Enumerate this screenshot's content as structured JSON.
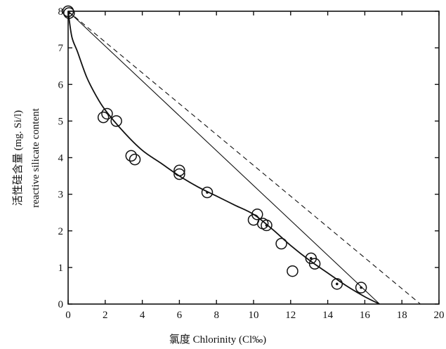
{
  "chart_data": {
    "type": "scatter",
    "xlabel": "氯度 Chlorinity (Cl‰)",
    "ylabel_cn": "活性硅含量 (mg. Si/l)",
    "ylabel_en": "reactive silicate content",
    "xlim": [
      0,
      20
    ],
    "ylim": [
      0,
      8
    ],
    "x_ticks": [
      0,
      2,
      4,
      6,
      8,
      10,
      12,
      14,
      16,
      18,
      20
    ],
    "y_ticks": [
      0,
      1,
      2,
      3,
      4,
      5,
      6,
      7,
      8
    ],
    "grid": false,
    "points": [
      {
        "x": 0.0,
        "y": 8.0,
        "dot": false
      },
      {
        "x": 0.05,
        "y": 7.95,
        "dot": true
      },
      {
        "x": 1.9,
        "y": 5.1,
        "dot": false
      },
      {
        "x": 2.1,
        "y": 5.2,
        "dot": false
      },
      {
        "x": 2.6,
        "y": 5.0,
        "dot": false
      },
      {
        "x": 3.4,
        "y": 4.05,
        "dot": false
      },
      {
        "x": 3.6,
        "y": 3.95,
        "dot": false
      },
      {
        "x": 6.0,
        "y": 3.65,
        "dot": false
      },
      {
        "x": 6.0,
        "y": 3.55,
        "dot": false
      },
      {
        "x": 7.5,
        "y": 3.05,
        "dot": true
      },
      {
        "x": 10.0,
        "y": 2.3,
        "dot": false
      },
      {
        "x": 10.2,
        "y": 2.45,
        "dot": false
      },
      {
        "x": 10.5,
        "y": 2.2,
        "dot": false
      },
      {
        "x": 10.7,
        "y": 2.15,
        "dot": true
      },
      {
        "x": 11.5,
        "y": 1.65,
        "dot": false
      },
      {
        "x": 12.1,
        "y": 0.9,
        "dot": false
      },
      {
        "x": 13.1,
        "y": 1.25,
        "dot": true
      },
      {
        "x": 13.3,
        "y": 1.1,
        "dot": false
      },
      {
        "x": 14.5,
        "y": 0.55,
        "dot": true
      },
      {
        "x": 15.8,
        "y": 0.45,
        "dot": true
      }
    ],
    "fitted_curve": [
      [
        0,
        8.0
      ],
      [
        0.2,
        7.3
      ],
      [
        0.5,
        6.9
      ],
      [
        1,
        6.2
      ],
      [
        1.5,
        5.7
      ],
      [
        2,
        5.3
      ],
      [
        3,
        4.7
      ],
      [
        4,
        4.2
      ],
      [
        5,
        3.85
      ],
      [
        6,
        3.5
      ],
      [
        7,
        3.2
      ],
      [
        8,
        2.95
      ],
      [
        9,
        2.7
      ],
      [
        10,
        2.45
      ],
      [
        11,
        2.05
      ],
      [
        12,
        1.6
      ],
      [
        13,
        1.2
      ],
      [
        14,
        0.85
      ],
      [
        15,
        0.5
      ],
      [
        16,
        0.2
      ],
      [
        16.8,
        0.0
      ]
    ],
    "solid_line": [
      [
        0,
        8.0
      ],
      [
        16.8,
        0.0
      ]
    ],
    "dashed_line": [
      [
        0,
        8.0
      ],
      [
        19.0,
        0.0
      ]
    ]
  }
}
